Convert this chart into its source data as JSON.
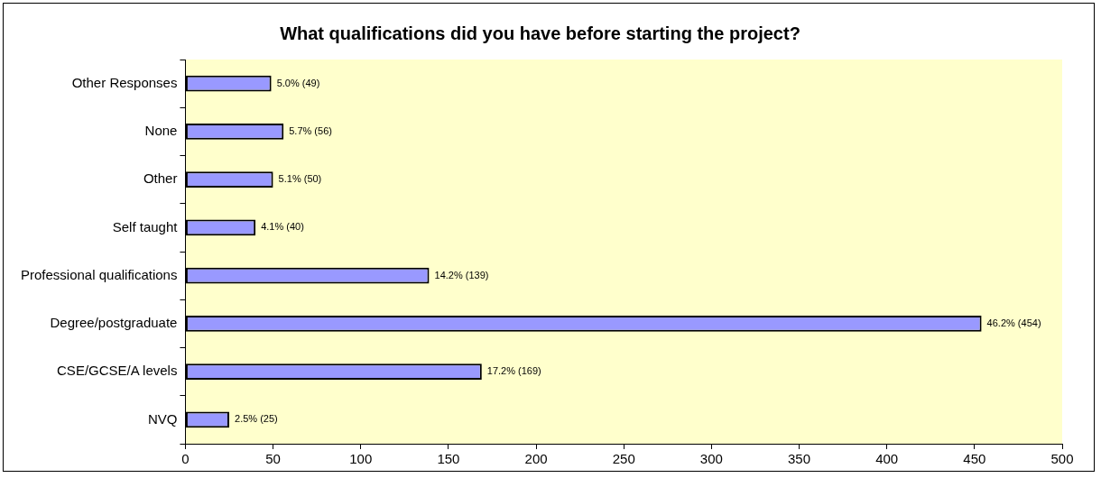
{
  "chart_data": {
    "type": "bar",
    "orientation": "horizontal",
    "title": "What qualifications did you have before starting the project?",
    "categories": [
      "Other Responses",
      "None",
      "Other",
      "Self taught",
      "Professional qualifications",
      "Degree/postgraduate",
      "CSE/GCSE/A levels",
      "NVQ"
    ],
    "values": [
      49,
      56,
      50,
      40,
      139,
      454,
      169,
      25
    ],
    "value_labels": [
      "5.0% (49)",
      "5.7% (56)",
      "5.1% (50)",
      "4.1% (40)",
      "14.2% (139)",
      "46.2% (454)",
      "17.2% (169)",
      "2.5% (25)"
    ],
    "color": "#9999ff",
    "xlim": [
      0,
      500
    ],
    "xticks": [
      0,
      50,
      100,
      150,
      200,
      250,
      300,
      350,
      400,
      450,
      500
    ],
    "grid": false,
    "legend": false
  }
}
